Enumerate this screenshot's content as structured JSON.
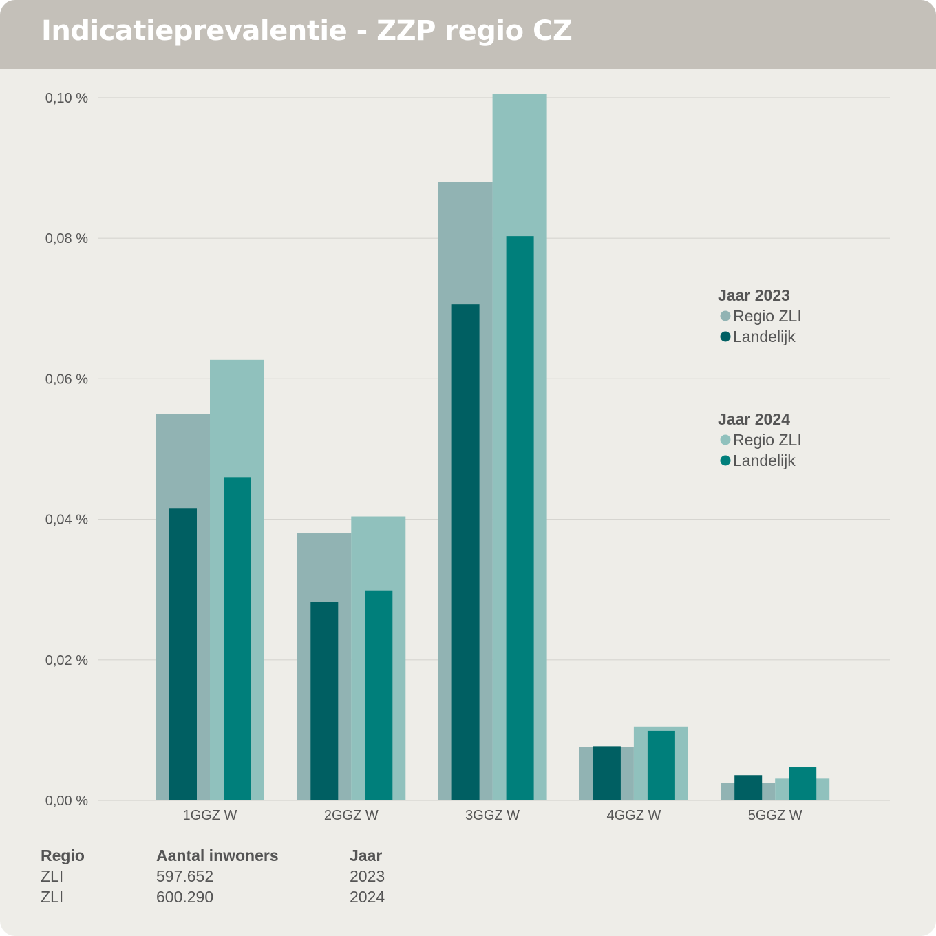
{
  "title": "Indicatieprevalentie - ZZP regio CZ",
  "colors": {
    "regio_2023": "#91b3b3",
    "landelijk_2023": "#005f62",
    "regio_2024": "#90c1bd",
    "landelijk_2024": "#007f7b",
    "grid": "#d6d5d0",
    "text": "#555555"
  },
  "chart_data": {
    "type": "bar",
    "title": "Indicatieprevalentie - ZZP regio CZ",
    "xlabel": "",
    "ylabel": "",
    "ylim": [
      0,
      0.1
    ],
    "y_unit": "%",
    "yticks": [
      "0,00 %",
      "0,02 %",
      "0,04 %",
      "0,06 %",
      "0,08 %",
      "0,10 %"
    ],
    "categories": [
      "1GGZ W",
      "2GGZ W",
      "3GGZ W",
      "4GGZ W",
      "5GGZ W"
    ],
    "series": [
      {
        "name": "Regio ZLI",
        "year": "2023",
        "values": [
          0.055,
          0.038,
          0.088,
          0.0076,
          0.0025
        ]
      },
      {
        "name": "Landelijk",
        "year": "2023",
        "values": [
          0.0416,
          0.0283,
          0.0706,
          0.0077,
          0.0036
        ]
      },
      {
        "name": "Regio ZLI",
        "year": "2024",
        "values": [
          0.0627,
          0.0404,
          0.1005,
          0.0105,
          0.0031
        ]
      },
      {
        "name": "Landelijk",
        "year": "2024",
        "values": [
          0.046,
          0.0299,
          0.0803,
          0.0099,
          0.0047
        ]
      }
    ],
    "grid": true,
    "legend_position": "right"
  },
  "legend": {
    "groups": [
      {
        "title": "Jaar 2023",
        "items": [
          {
            "label": "Regio ZLI",
            "color": "#91b3b3"
          },
          {
            "label": "Landelijk",
            "color": "#005f62"
          }
        ]
      },
      {
        "title": "Jaar 2024",
        "items": [
          {
            "label": "Regio ZLI",
            "color": "#90c1bd"
          },
          {
            "label": "Landelijk",
            "color": "#007f7b"
          }
        ]
      }
    ]
  },
  "info_table": {
    "headers": [
      "Regio",
      "Aantal inwoners",
      "Jaar"
    ],
    "rows": [
      [
        "ZLI",
        "597.652",
        "2023"
      ],
      [
        "ZLI",
        "600.290",
        "2024"
      ]
    ]
  }
}
